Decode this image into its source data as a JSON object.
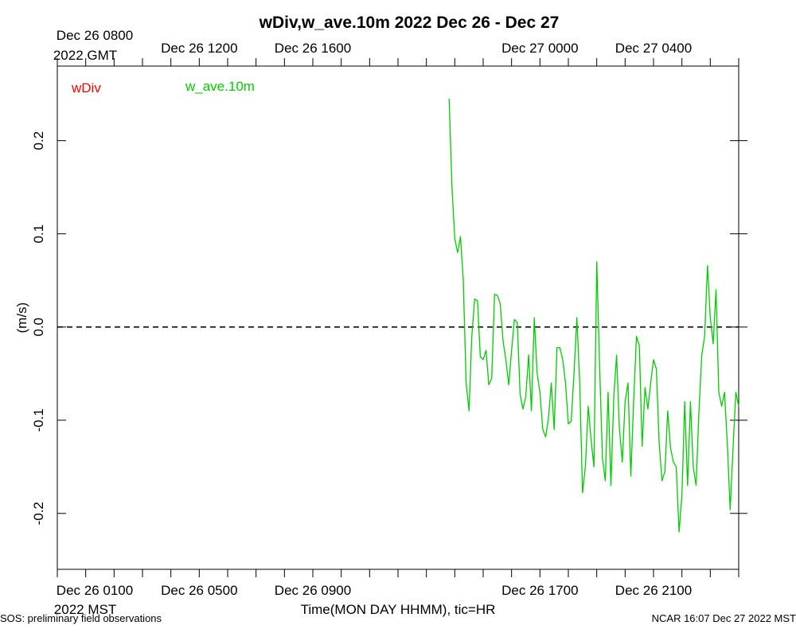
{
  "chart_data": {
    "type": "line",
    "title": "wDiv,w_ave.10m 2022 Dec 26 - Dec 27",
    "xlabel": "Time(MON DAY HHMM), tic=HR",
    "ylabel": "(m/s)",
    "ylim": [
      -0.26,
      0.28
    ],
    "yticks": [
      -0.2,
      -0.1,
      0.0,
      0.1,
      0.2
    ],
    "ytick_labels": [
      "-0.2",
      "-0.1",
      "0.0",
      "0.1",
      "0.2"
    ],
    "zero_line": 0.0,
    "xlim_hours": [
      0,
      24
    ],
    "top_axis_label": [
      "Dec 26 0800",
      "2022 GMT"
    ],
    "bottom_axis_label": [
      "Dec 26 0100",
      "2022 MST"
    ],
    "top_ticks": [
      {
        "hour": 5,
        "label": "Dec 26 1200"
      },
      {
        "hour": 9,
        "label": "Dec 26 1600"
      },
      {
        "hour": 17,
        "label": "Dec 27 0000"
      },
      {
        "hour": 21,
        "label": "Dec 27 0400"
      }
    ],
    "bottom_ticks": [
      {
        "hour": 5,
        "label": "Dec 26 0500"
      },
      {
        "hour": 9,
        "label": "Dec 26 0900"
      },
      {
        "hour": 17,
        "label": "Dec 26 1700"
      },
      {
        "hour": 21,
        "label": "Dec 26 2100"
      }
    ],
    "series": [
      {
        "name": "wDiv",
        "color": "#ff0000",
        "x": [],
        "y": []
      },
      {
        "name": "w_ave.10m",
        "color": "#00cc00",
        "x": [
          13.8,
          13.9,
          14.0,
          14.1,
          14.2,
          14.3,
          14.4,
          14.5,
          14.6,
          14.7,
          14.8,
          14.9,
          15.0,
          15.1,
          15.2,
          15.3,
          15.4,
          15.5,
          15.6,
          15.7,
          15.8,
          15.9,
          16.0,
          16.1,
          16.2,
          16.3,
          16.4,
          16.5,
          16.6,
          16.7,
          16.8,
          16.9,
          17.0,
          17.1,
          17.2,
          17.3,
          17.4,
          17.5,
          17.6,
          17.7,
          17.8,
          17.9,
          18.0,
          18.1,
          18.2,
          18.3,
          18.4,
          18.5,
          18.6,
          18.7,
          18.8,
          18.9,
          19.0,
          19.1,
          19.2,
          19.3,
          19.4,
          19.5,
          19.6,
          19.7,
          19.8,
          19.9,
          20.0,
          20.1,
          20.2,
          20.3,
          20.4,
          20.5,
          20.6,
          20.7,
          20.8,
          20.9,
          21.0,
          21.1,
          21.2,
          21.3,
          21.4,
          21.5,
          21.6,
          21.7,
          21.8,
          21.9,
          22.0,
          22.1,
          22.2,
          22.3,
          22.4,
          22.5,
          22.6,
          22.7,
          22.8,
          22.9,
          23.0,
          23.1,
          23.2,
          23.3,
          23.4,
          23.5,
          23.6,
          23.7,
          23.8,
          23.9,
          24.0
        ],
        "y": [
          0.245,
          0.15,
          0.095,
          0.08,
          0.097,
          0.05,
          -0.06,
          -0.09,
          -0.01,
          0.03,
          0.028,
          -0.032,
          -0.035,
          -0.025,
          -0.062,
          -0.055,
          0.035,
          0.034,
          0.025,
          -0.015,
          -0.035,
          -0.062,
          -0.025,
          0.008,
          0.005,
          -0.072,
          -0.088,
          -0.075,
          -0.03,
          -0.09,
          0.01,
          -0.05,
          -0.07,
          -0.11,
          -0.118,
          -0.098,
          -0.06,
          -0.11,
          -0.022,
          -0.022,
          -0.035,
          -0.06,
          -0.104,
          -0.101,
          -0.05,
          0.01,
          -0.06,
          -0.178,
          -0.15,
          -0.085,
          -0.12,
          -0.15,
          0.07,
          -0.04,
          -0.14,
          -0.165,
          -0.07,
          -0.17,
          -0.075,
          -0.03,
          -0.11,
          -0.145,
          -0.08,
          -0.06,
          -0.16,
          -0.08,
          -0.01,
          -0.02,
          -0.128,
          -0.065,
          -0.088,
          -0.06,
          -0.035,
          -0.045,
          -0.125,
          -0.165,
          -0.155,
          -0.09,
          -0.13,
          -0.145,
          -0.15,
          -0.22,
          -0.18,
          -0.08,
          -0.17,
          -0.08,
          -0.15,
          -0.17,
          -0.09,
          -0.03,
          -0.01,
          0.066,
          0.01,
          -0.018,
          0.04,
          -0.07,
          -0.085,
          -0.07,
          -0.125,
          -0.196,
          -0.13,
          -0.07,
          -0.085
        ]
      }
    ]
  },
  "footer": {
    "left": "SOS: preliminary field observations",
    "right": "NCAR 16:07 Dec 27 2022 MST"
  }
}
